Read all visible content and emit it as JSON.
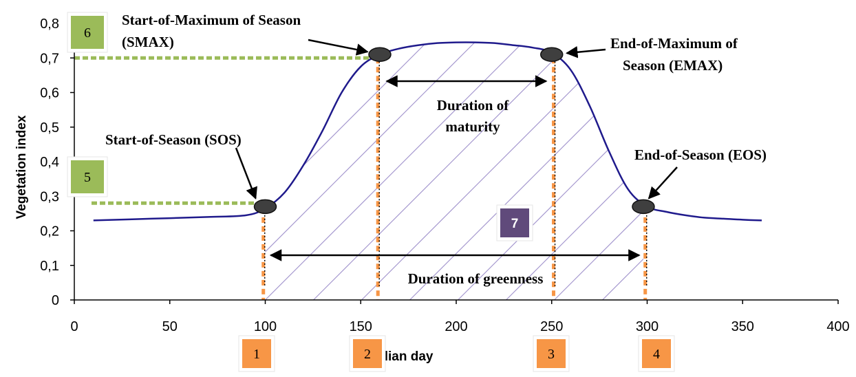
{
  "chart_data": {
    "type": "line",
    "title": "",
    "xlabel": "Julian day",
    "ylabel": "Vegetation index",
    "xlim": [
      0,
      400
    ],
    "ylim": [
      0,
      0.8
    ],
    "x_ticks": [
      "0",
      "50",
      "100",
      "150",
      "200",
      "250",
      "300",
      "350",
      "400"
    ],
    "y_ticks": [
      "0",
      "0,1",
      "0,2",
      "0,3",
      "0,4",
      "0,5",
      "0,6",
      "0,7",
      "0,8"
    ],
    "grid": false,
    "series": [
      {
        "x": [
          10,
          40,
          70,
          90,
          100,
          110,
          120,
          130,
          140,
          150,
          160,
          170,
          180,
          190,
          200,
          210,
          220,
          230,
          240,
          250,
          260,
          270,
          280,
          290,
          300,
          310,
          320,
          330,
          340,
          350,
          360
        ],
        "y": [
          0.23,
          0.235,
          0.24,
          0.245,
          0.265,
          0.31,
          0.39,
          0.49,
          0.6,
          0.675,
          0.71,
          0.727,
          0.737,
          0.743,
          0.745,
          0.745,
          0.743,
          0.737,
          0.73,
          0.715,
          0.665,
          0.56,
          0.43,
          0.32,
          0.27,
          0.255,
          0.245,
          0.238,
          0.235,
          0.232,
          0.23
        ]
      }
    ],
    "markers": [
      {
        "name": "SOS",
        "x": 100,
        "y": 0.27
      },
      {
        "name": "SMAX",
        "x": 160,
        "y": 0.71
      },
      {
        "name": "EMAX",
        "x": 250,
        "y": 0.71
      },
      {
        "name": "EOS",
        "x": 298,
        "y": 0.27
      }
    ],
    "annotations": {
      "smax": [
        "Start-of-Maximum of Season",
        "(SMAX)"
      ],
      "emax": [
        "End-of-Maximum of",
        "Season (EMAX)"
      ],
      "sos": "Start-of-Season (SOS)",
      "eos": "End-of-Season (EOS)",
      "maturity": [
        "Duration of",
        "maturity"
      ],
      "greenness": "Duration of greenness"
    },
    "boxes": [
      {
        "label": "1",
        "color": "#f79646"
      },
      {
        "label": "2",
        "color": "#f79646"
      },
      {
        "label": "3",
        "color": "#f79646"
      },
      {
        "label": "4",
        "color": "#f79646"
      },
      {
        "label": "5",
        "color": "#9bbb59"
      },
      {
        "label": "6",
        "color": "#9bbb59"
      },
      {
        "label": "7",
        "color": "#604a7b"
      }
    ],
    "colors": {
      "curve": "#1f1a8c",
      "hatch": "#a79bd0",
      "orange": "#f79646",
      "green": "#9bbb59",
      "marker": "#3f3f3f"
    }
  }
}
